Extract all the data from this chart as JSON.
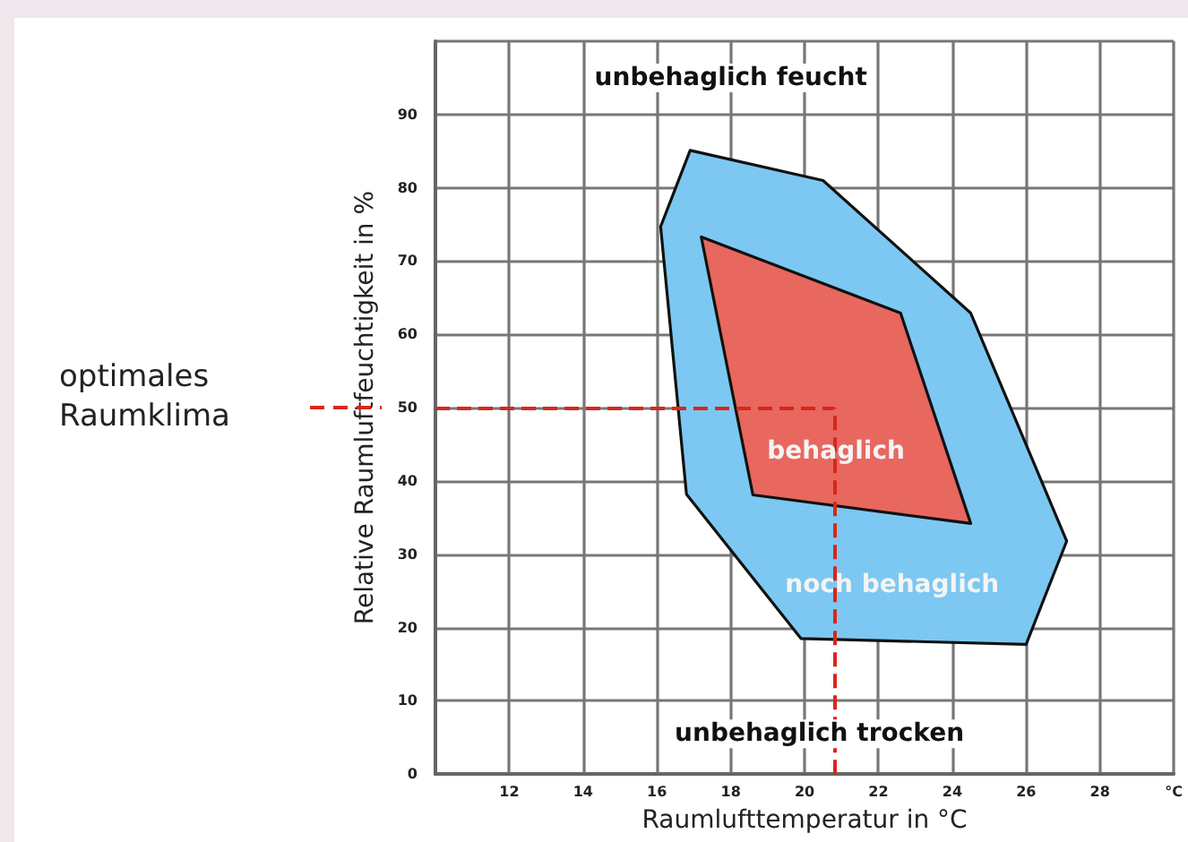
{
  "chart_data": {
    "type": "area",
    "xlabel": "Raumlufttemperatur in °C",
    "ylabel": "Relative Raumluftfeuchtigkeit in %",
    "xlim": [
      10,
      30
    ],
    "xticks": [
      {
        "value": 10,
        "label": null
      },
      12,
      14,
      16,
      18,
      20,
      22,
      24,
      26,
      28,
      {
        "value": 30,
        "label": "°C"
      }
    ],
    "ylim": [
      0,
      100
    ],
    "yticks": [
      0,
      10,
      20,
      30,
      40,
      50,
      60,
      70,
      80,
      90,
      {
        "value": 100,
        "label": null
      }
    ],
    "grid": true,
    "series": [
      {
        "name": "noch behaglich",
        "color": "#7cc8f2",
        "x": [
          16.9,
          20.5,
          24.5,
          27.1,
          26.0,
          19.9,
          16.8,
          16.1
        ],
        "values": [
          85.1,
          81,
          62.9,
          31.8,
          17.7,
          18.5,
          38.2,
          74.7
        ]
      },
      {
        "name": "behaglich",
        "color": "#e8675f",
        "x": [
          17.2,
          22.6,
          24.5,
          18.6
        ],
        "values": [
          73.3,
          62.9,
          34.2,
          38.1
        ]
      }
    ],
    "ref_lines": [
      {
        "axis": "y",
        "value": 50,
        "color": "#d9261c",
        "line_style": "dashed"
      },
      {
        "axis": "x",
        "value": 20.8,
        "color": "#d9261c",
        "line_style": "dashed"
      }
    ],
    "annotations": [
      "unbehaglich feucht",
      "unbehaglich trocken",
      "optimales Raumklima"
    ]
  }
}
